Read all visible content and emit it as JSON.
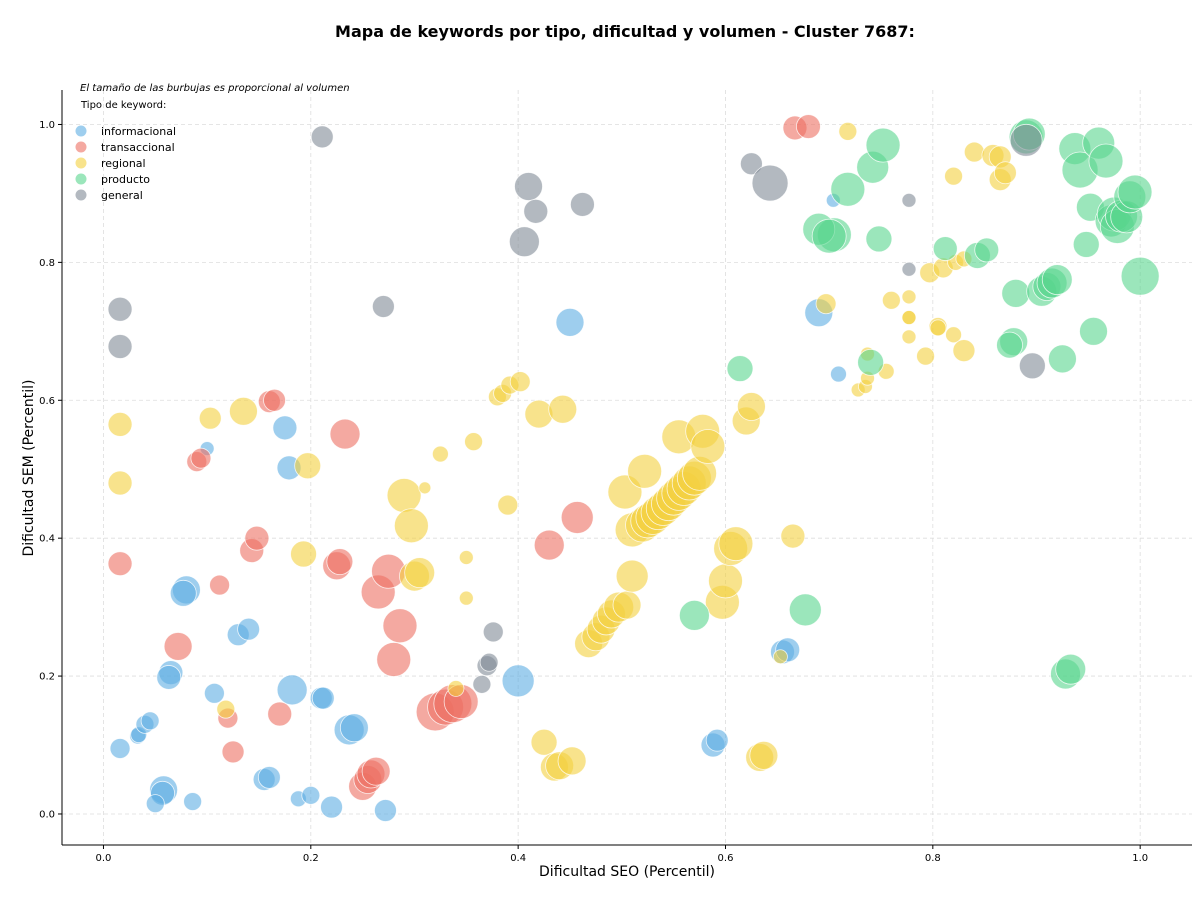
{
  "chart_data": {
    "type": "scatter",
    "title": "Mapa de keywords por tipo, dificultad y volumen - Cluster 7687:",
    "xlabel": "Dificultad SEO (Percentil)",
    "ylabel": "Dificultad SEM (Percentil)",
    "note": "El tamaño de las burbujas es proporcional al volumen",
    "legend_title": "Tipo de keyword:",
    "legend_position": "top-left",
    "xlim": [
      -0.04,
      1.05
    ],
    "ylim": [
      -0.045,
      1.05
    ],
    "xticks": [
      "0.0",
      "0.2",
      "0.4",
      "0.6",
      "0.8",
      "1.0"
    ],
    "yticks": [
      "0.0",
      "0.2",
      "0.4",
      "0.6",
      "0.8",
      "1.0"
    ],
    "grid": true,
    "series": [
      {
        "name": "informacional",
        "color": "#5dade2",
        "points": [
          [
            0.08,
            0.325,
            14
          ],
          [
            0.077,
            0.32,
            13
          ],
          [
            0.065,
            0.205,
            12
          ],
          [
            0.063,
            0.198,
            12
          ],
          [
            0.058,
            0.035,
            14
          ],
          [
            0.057,
            0.03,
            12
          ],
          [
            0.05,
            0.015,
            9
          ],
          [
            0.086,
            0.018,
            9
          ],
          [
            0.016,
            0.095,
            10
          ],
          [
            0.033,
            0.113,
            8
          ],
          [
            0.034,
            0.115,
            8
          ],
          [
            0.04,
            0.13,
            9
          ],
          [
            0.045,
            0.135,
            9
          ],
          [
            0.107,
            0.175,
            10
          ],
          [
            0.13,
            0.26,
            11
          ],
          [
            0.14,
            0.268,
            11
          ],
          [
            0.155,
            0.05,
            11
          ],
          [
            0.16,
            0.053,
            11
          ],
          [
            0.188,
            0.022,
            8
          ],
          [
            0.2,
            0.027,
            9
          ],
          [
            0.21,
            0.168,
            11
          ],
          [
            0.212,
            0.168,
            11
          ],
          [
            0.22,
            0.01,
            11
          ],
          [
            0.182,
            0.18,
            15
          ],
          [
            0.237,
            0.122,
            15
          ],
          [
            0.242,
            0.125,
            14
          ],
          [
            0.272,
            0.005,
            11
          ],
          [
            0.175,
            0.56,
            12
          ],
          [
            0.179,
            0.502,
            12
          ],
          [
            0.1,
            0.53,
            7
          ],
          [
            0.4,
            0.193,
            16
          ],
          [
            0.45,
            0.713,
            14
          ],
          [
            0.588,
            0.1,
            12
          ],
          [
            0.592,
            0.107,
            11
          ],
          [
            0.655,
            0.235,
            12
          ],
          [
            0.66,
            0.238,
            12
          ],
          [
            0.69,
            0.727,
            14
          ],
          [
            0.704,
            0.89,
            7
          ],
          [
            0.709,
            0.638,
            8
          ]
        ]
      },
      {
        "name": "transaccional",
        "color": "#ec7063",
        "points": [
          [
            0.016,
            0.363,
            12
          ],
          [
            0.072,
            0.243,
            14
          ],
          [
            0.09,
            0.511,
            10
          ],
          [
            0.094,
            0.516,
            10
          ],
          [
            0.112,
            0.332,
            10
          ],
          [
            0.12,
            0.139,
            10
          ],
          [
            0.125,
            0.09,
            11
          ],
          [
            0.143,
            0.382,
            12
          ],
          [
            0.148,
            0.4,
            12
          ],
          [
            0.16,
            0.598,
            11
          ],
          [
            0.165,
            0.6,
            11
          ],
          [
            0.17,
            0.145,
            12
          ],
          [
            0.225,
            0.36,
            14
          ],
          [
            0.228,
            0.366,
            13
          ],
          [
            0.233,
            0.551,
            15
          ],
          [
            0.25,
            0.04,
            14
          ],
          [
            0.255,
            0.05,
            14
          ],
          [
            0.258,
            0.058,
            14
          ],
          [
            0.263,
            0.062,
            14
          ],
          [
            0.265,
            0.322,
            17
          ],
          [
            0.275,
            0.352,
            17
          ],
          [
            0.28,
            0.224,
            17
          ],
          [
            0.286,
            0.273,
            17
          ],
          [
            0.32,
            0.148,
            19
          ],
          [
            0.33,
            0.155,
            18
          ],
          [
            0.337,
            0.16,
            19
          ],
          [
            0.345,
            0.163,
            17
          ],
          [
            0.43,
            0.39,
            15
          ],
          [
            0.457,
            0.43,
            16
          ],
          [
            0.667,
            0.995,
            12
          ],
          [
            0.68,
            0.997,
            12
          ]
        ]
      },
      {
        "name": "regional",
        "color": "#f4d03f",
        "points": [
          [
            0.016,
            0.565,
            12
          ],
          [
            0.016,
            0.48,
            12
          ],
          [
            0.103,
            0.574,
            11
          ],
          [
            0.135,
            0.584,
            14
          ],
          [
            0.197,
            0.505,
            13
          ],
          [
            0.193,
            0.377,
            13
          ],
          [
            0.118,
            0.152,
            9
          ],
          [
            0.29,
            0.462,
            17
          ],
          [
            0.297,
            0.418,
            17
          ],
          [
            0.3,
            0.345,
            15
          ],
          [
            0.305,
            0.35,
            15
          ],
          [
            0.31,
            0.473,
            6
          ],
          [
            0.325,
            0.522,
            8
          ],
          [
            0.35,
            0.372,
            7
          ],
          [
            0.35,
            0.313,
            7
          ],
          [
            0.357,
            0.54,
            9
          ],
          [
            0.34,
            0.182,
            8
          ],
          [
            0.39,
            0.448,
            10
          ],
          [
            0.38,
            0.605,
            9
          ],
          [
            0.385,
            0.61,
            9
          ],
          [
            0.392,
            0.622,
            9
          ],
          [
            0.402,
            0.627,
            10
          ],
          [
            0.42,
            0.58,
            14
          ],
          [
            0.443,
            0.587,
            14
          ],
          [
            0.425,
            0.104,
            13
          ],
          [
            0.435,
            0.068,
            14
          ],
          [
            0.44,
            0.07,
            14
          ],
          [
            0.452,
            0.077,
            14
          ],
          [
            0.468,
            0.247,
            14
          ],
          [
            0.475,
            0.257,
            14
          ],
          [
            0.48,
            0.268,
            14
          ],
          [
            0.485,
            0.28,
            14
          ],
          [
            0.49,
            0.29,
            14
          ],
          [
            0.497,
            0.3,
            15
          ],
          [
            0.505,
            0.303,
            14
          ],
          [
            0.51,
            0.345,
            16
          ],
          [
            0.503,
            0.467,
            17
          ],
          [
            0.51,
            0.412,
            17
          ],
          [
            0.52,
            0.419,
            17
          ],
          [
            0.525,
            0.425,
            17
          ],
          [
            0.53,
            0.43,
            17
          ],
          [
            0.535,
            0.437,
            17
          ],
          [
            0.54,
            0.443,
            17
          ],
          [
            0.545,
            0.45,
            17
          ],
          [
            0.55,
            0.458,
            17
          ],
          [
            0.555,
            0.465,
            17
          ],
          [
            0.56,
            0.472,
            17
          ],
          [
            0.565,
            0.48,
            17
          ],
          [
            0.57,
            0.487,
            17
          ],
          [
            0.575,
            0.494,
            17
          ],
          [
            0.522,
            0.497,
            17
          ],
          [
            0.555,
            0.547,
            17
          ],
          [
            0.578,
            0.555,
            17
          ],
          [
            0.583,
            0.533,
            17
          ],
          [
            0.597,
            0.307,
            17
          ],
          [
            0.6,
            0.338,
            17
          ],
          [
            0.605,
            0.385,
            17
          ],
          [
            0.61,
            0.392,
            17
          ],
          [
            0.62,
            0.57,
            14
          ],
          [
            0.625,
            0.591,
            14
          ],
          [
            0.633,
            0.082,
            14
          ],
          [
            0.637,
            0.085,
            14
          ],
          [
            0.665,
            0.403,
            12
          ],
          [
            0.653,
            0.228,
            7
          ],
          [
            0.697,
            0.74,
            10
          ],
          [
            0.718,
            0.99,
            9
          ],
          [
            0.728,
            0.615,
            7
          ],
          [
            0.735,
            0.62,
            7
          ],
          [
            0.737,
            0.632,
            7
          ],
          [
            0.737,
            0.667,
            7
          ],
          [
            0.755,
            0.642,
            8
          ],
          [
            0.76,
            0.745,
            9
          ],
          [
            0.777,
            0.75,
            7
          ],
          [
            0.777,
            0.72,
            7
          ],
          [
            0.777,
            0.72,
            7
          ],
          [
            0.777,
            0.692,
            7
          ],
          [
            0.793,
            0.664,
            9
          ],
          [
            0.797,
            0.785,
            10
          ],
          [
            0.805,
            0.707,
            9
          ],
          [
            0.805,
            0.705,
            8
          ],
          [
            0.81,
            0.792,
            10
          ],
          [
            0.82,
            0.695,
            8
          ],
          [
            0.82,
            0.925,
            9
          ],
          [
            0.822,
            0.8,
            8
          ],
          [
            0.83,
            0.672,
            11
          ],
          [
            0.83,
            0.805,
            8
          ],
          [
            0.84,
            0.96,
            10
          ],
          [
            0.858,
            0.955,
            11
          ],
          [
            0.865,
            0.953,
            11
          ],
          [
            0.865,
            0.92,
            11
          ],
          [
            0.87,
            0.93,
            11
          ]
        ]
      },
      {
        "name": "producto",
        "color": "#58d68d",
        "points": [
          [
            0.57,
            0.288,
            15
          ],
          [
            0.614,
            0.646,
            13
          ],
          [
            0.677,
            0.296,
            16
          ],
          [
            0.705,
            0.84,
            17
          ],
          [
            0.69,
            0.848,
            16
          ],
          [
            0.7,
            0.838,
            17
          ],
          [
            0.718,
            0.906,
            17
          ],
          [
            0.74,
            0.655,
            13
          ],
          [
            0.742,
            0.938,
            16
          ],
          [
            0.748,
            0.834,
            13
          ],
          [
            0.752,
            0.97,
            17
          ],
          [
            0.812,
            0.82,
            12
          ],
          [
            0.843,
            0.81,
            13
          ],
          [
            0.852,
            0.818,
            12
          ],
          [
            0.88,
            0.755,
            14
          ],
          [
            0.878,
            0.685,
            14
          ],
          [
            0.874,
            0.68,
            13
          ],
          [
            0.89,
            0.982,
            17
          ],
          [
            0.893,
            0.986,
            16
          ],
          [
            0.905,
            0.758,
            15
          ],
          [
            0.91,
            0.765,
            14
          ],
          [
            0.915,
            0.77,
            15
          ],
          [
            0.92,
            0.775,
            15
          ],
          [
            0.928,
            0.203,
            15
          ],
          [
            0.933,
            0.21,
            15
          ],
          [
            0.925,
            0.66,
            14
          ],
          [
            0.937,
            0.965,
            16
          ],
          [
            0.942,
            0.934,
            18
          ],
          [
            0.948,
            0.826,
            13
          ],
          [
            0.952,
            0.88,
            14
          ],
          [
            0.955,
            0.7,
            14
          ],
          [
            0.96,
            0.973,
            16
          ],
          [
            0.967,
            0.947,
            17
          ],
          [
            0.972,
            0.86,
            16
          ],
          [
            0.975,
            0.87,
            17
          ],
          [
            0.978,
            0.852,
            17
          ],
          [
            0.982,
            0.867,
            16
          ],
          [
            0.987,
            0.866,
            16
          ],
          [
            0.99,
            0.895,
            16
          ],
          [
            0.995,
            0.902,
            17
          ],
          [
            1.0,
            0.78,
            19
          ]
        ]
      },
      {
        "name": "general",
        "color": "#808b96",
        "points": [
          [
            0.016,
            0.732,
            12
          ],
          [
            0.016,
            0.678,
            12
          ],
          [
            0.211,
            0.982,
            11
          ],
          [
            0.27,
            0.736,
            11
          ],
          [
            0.365,
            0.188,
            9
          ],
          [
            0.37,
            0.215,
            10
          ],
          [
            0.372,
            0.22,
            9
          ],
          [
            0.376,
            0.264,
            10
          ],
          [
            0.406,
            0.83,
            15
          ],
          [
            0.41,
            0.91,
            14
          ],
          [
            0.417,
            0.874,
            12
          ],
          [
            0.462,
            0.884,
            12
          ],
          [
            0.625,
            0.943,
            11
          ],
          [
            0.643,
            0.915,
            18
          ],
          [
            0.777,
            0.79,
            7
          ],
          [
            0.777,
            0.89,
            7
          ],
          [
            0.89,
            0.977,
            16
          ],
          [
            0.896,
            0.65,
            13
          ]
        ]
      }
    ]
  }
}
